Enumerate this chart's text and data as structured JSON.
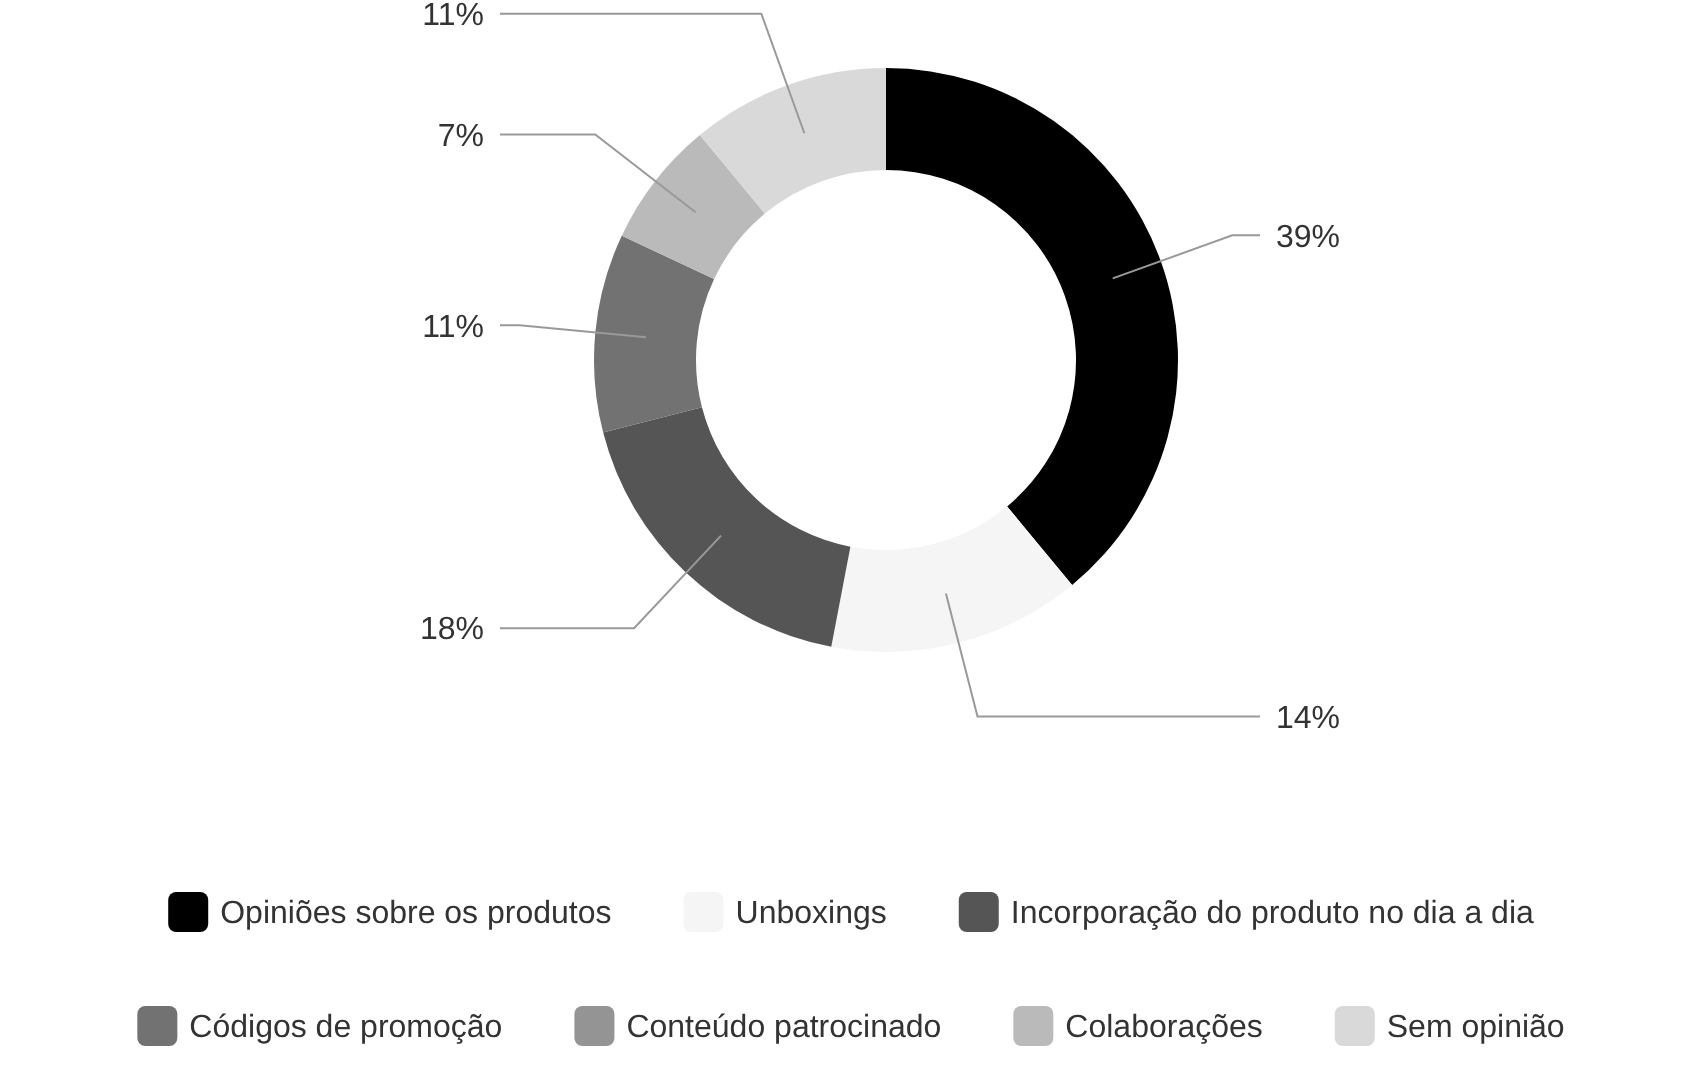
{
  "chart_data": {
    "type": "donut",
    "categories": [
      "Opiniões sobre os produtos",
      "Unboxings",
      "Incorporação do produto no dia a dia",
      "Códigos de promoção",
      "Conteúdo patrocinado",
      "Colaborações",
      "Sem opinião"
    ],
    "values": [
      39,
      14,
      18,
      11,
      0,
      7,
      11
    ],
    "value_labels": [
      "39%",
      "14%",
      "18%",
      "11%",
      null,
      "7%",
      "11%"
    ],
    "colors": [
      "#000000",
      "#f5f5f5",
      "#555555",
      "#727272",
      "#949494",
      "#bababa",
      "#d9d9d9"
    ],
    "legend": "bottom"
  }
}
